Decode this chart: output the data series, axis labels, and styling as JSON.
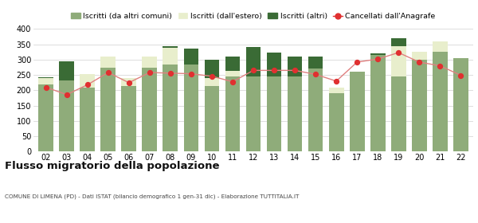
{
  "years": [
    "02",
    "03",
    "04",
    "05",
    "06",
    "07",
    "08",
    "09",
    "10",
    "11",
    "12",
    "13",
    "14",
    "15",
    "16",
    "17",
    "18",
    "19",
    "20",
    "21",
    "22"
  ],
  "iscritti_altri_comuni": [
    218,
    232,
    210,
    275,
    215,
    275,
    285,
    285,
    215,
    245,
    245,
    245,
    245,
    270,
    190,
    260,
    315,
    245,
    300,
    325,
    305
  ],
  "iscritti_estero": [
    22,
    0,
    42,
    35,
    25,
    35,
    55,
    0,
    25,
    18,
    0,
    0,
    0,
    0,
    20,
    0,
    0,
    100,
    25,
    35,
    0
  ],
  "iscritti_altri": [
    3,
    62,
    0,
    0,
    0,
    0,
    3,
    50,
    60,
    48,
    95,
    78,
    65,
    40,
    0,
    0,
    5,
    25,
    0,
    0,
    0
  ],
  "cancellati": [
    210,
    186,
    218,
    258,
    225,
    258,
    256,
    254,
    246,
    228,
    265,
    265,
    265,
    252,
    230,
    292,
    302,
    323,
    292,
    280,
    249
  ],
  "color_comuni": "#8fac7a",
  "color_estero": "#e8eecc",
  "color_altri": "#3a6b35",
  "color_cancellati": "#e03030",
  "color_line": "#e08080",
  "bg_color": "#ffffff",
  "grid_color": "#d0d0d0",
  "ylim": [
    0,
    400
  ],
  "yticks": [
    0,
    50,
    100,
    150,
    200,
    250,
    300,
    350,
    400
  ],
  "title": "Flusso migratorio della popolazione",
  "subtitle": "COMUNE DI LIMENA (PD) - Dati ISTAT (bilancio demografico 1 gen-31 dic) - Elaborazione TUTTITALIA.IT",
  "legend_labels": [
    "Iscritti (da altri comuni)",
    "Iscritti (dall'estero)",
    "Iscritti (altri)",
    "Cancellati dall'Anagrafe"
  ]
}
